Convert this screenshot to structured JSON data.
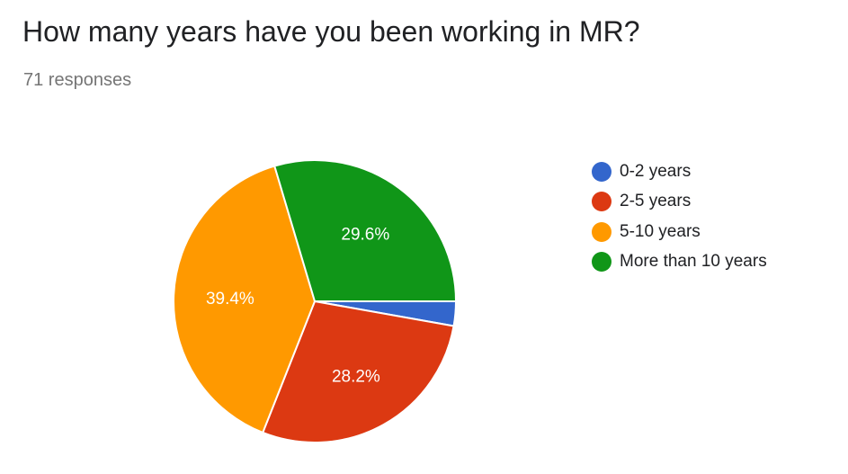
{
  "header": {
    "title": "How many years have you been working in MR?",
    "responses": "71 responses"
  },
  "chart_data": {
    "type": "pie",
    "title": "How many years have you been working in MR?",
    "slices": [
      {
        "label": "0-2 years",
        "value": 2.8,
        "color": "#3366cc",
        "data_label": ""
      },
      {
        "label": "2-5 years",
        "value": 28.2,
        "color": "#dc3912",
        "data_label": "28.2%"
      },
      {
        "label": "5-10 years",
        "value": 39.4,
        "color": "#ff9900",
        "data_label": "39.4%"
      },
      {
        "label": "More than 10 years",
        "value": 29.6,
        "color": "#109618",
        "data_label": "29.6%"
      }
    ],
    "legend_position": "right"
  }
}
